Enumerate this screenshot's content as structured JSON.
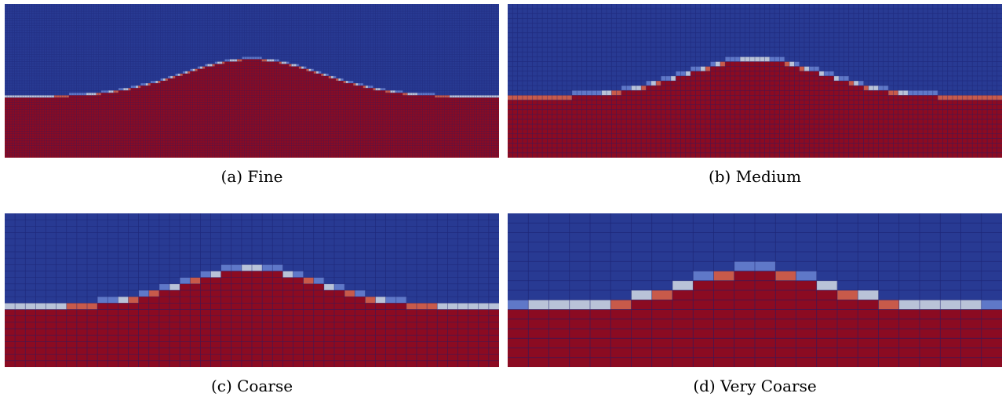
{
  "panels": [
    {
      "id": "a",
      "caption": "(a)  Fine"
    },
    {
      "id": "b",
      "caption": "(b)  Medium"
    },
    {
      "id": "c",
      "caption": "(c)  Coarse"
    },
    {
      "id": "d",
      "caption": "(d)  Very Coarse"
    }
  ],
  "colors": {
    "liquid": "#8b0b22",
    "gas": "#283a93",
    "interface_light": "#b9c3d8",
    "interface_mid_red": "#c85a4a",
    "interface_mid_blue": "#5f78c8",
    "grid_line": "#1a1f6e"
  }
}
